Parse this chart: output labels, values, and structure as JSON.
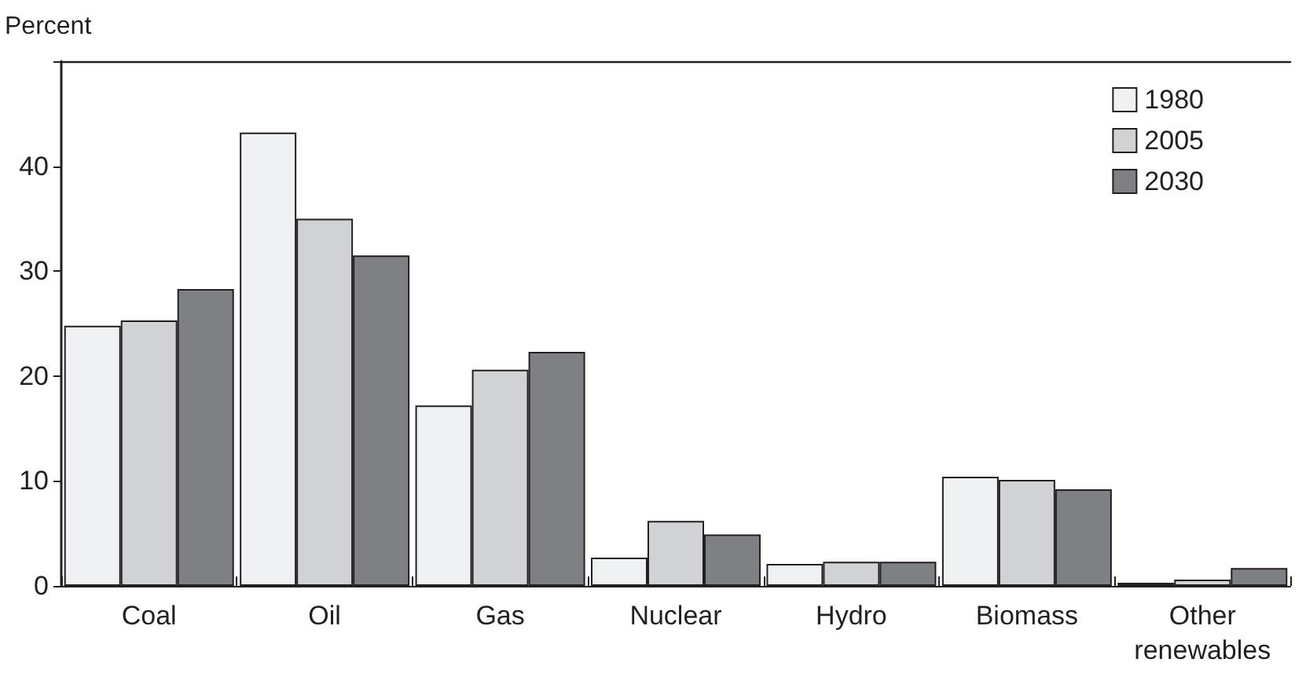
{
  "chart_data": {
    "type": "bar",
    "ylabel": "Percent",
    "categories": [
      "Coal",
      "Oil",
      "Gas",
      "Nuclear",
      "Hydro",
      "Biomass",
      "Other\nrenewables"
    ],
    "series": [
      {
        "name": "1980",
        "color": "#f0f1f2",
        "values": [
          24.8,
          43.2,
          17.2,
          2.7,
          2.1,
          10.4,
          0.3
        ]
      },
      {
        "name": "2005",
        "color": "#d1d2d4",
        "values": [
          25.3,
          35.0,
          20.6,
          6.2,
          2.3,
          10.1,
          0.6
        ]
      },
      {
        "name": "2030",
        "color": "#7f8083",
        "values": [
          28.3,
          31.5,
          22.3,
          4.9,
          2.3,
          9.2,
          1.7
        ]
      }
    ],
    "ylim": [
      0,
      50
    ],
    "yticks": [
      0,
      10,
      20,
      30,
      40,
      {
        "value": 50,
        "label": null
      }
    ],
    "grid": false,
    "legend": "top right"
  }
}
